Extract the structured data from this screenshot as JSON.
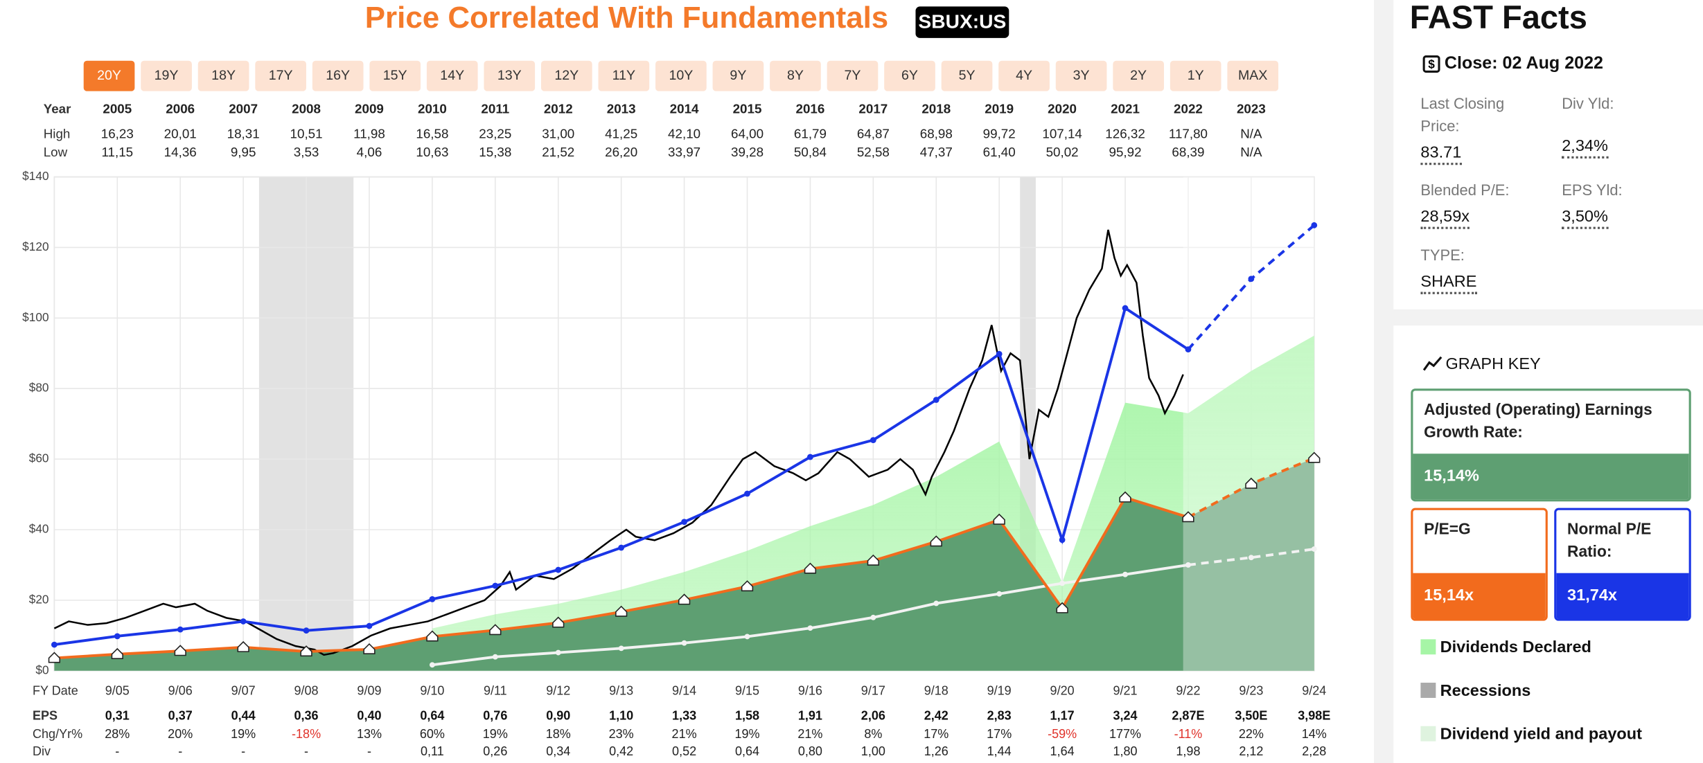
{
  "header": {
    "title": "Price Correlated With Fundamentals",
    "ticker": "SBUX:US"
  },
  "range_buttons": {
    "labels": [
      "20Y",
      "19Y",
      "18Y",
      "17Y",
      "16Y",
      "15Y",
      "14Y",
      "13Y",
      "12Y",
      "11Y",
      "10Y",
      "9Y",
      "8Y",
      "7Y",
      "6Y",
      "5Y",
      "4Y",
      "3Y",
      "2Y",
      "1Y",
      "MAX"
    ],
    "active": 0
  },
  "year_table": {
    "row_labels": [
      "Year",
      "High",
      "Low"
    ],
    "years": [
      "2005",
      "2006",
      "2007",
      "2008",
      "2009",
      "2010",
      "2011",
      "2012",
      "2013",
      "2014",
      "2015",
      "2016",
      "2017",
      "2018",
      "2019",
      "2020",
      "2021",
      "2022",
      "2023"
    ],
    "high": [
      "16,23",
      "20,01",
      "18,31",
      "10,51",
      "11,98",
      "16,58",
      "23,25",
      "31,00",
      "41,25",
      "42,10",
      "64,00",
      "61,79",
      "64,87",
      "68,98",
      "99,72",
      "107,14",
      "126,32",
      "117,80",
      "N/A"
    ],
    "low": [
      "11,15",
      "14,36",
      "9,95",
      "3,53",
      "4,06",
      "10,63",
      "15,38",
      "21,52",
      "26,20",
      "33,97",
      "39,28",
      "50,84",
      "52,58",
      "47,37",
      "61,40",
      "50,02",
      "95,92",
      "68,39",
      "N/A"
    ]
  },
  "chart_data": {
    "type": "line",
    "categories": [
      null,
      "9/05",
      "9/06",
      "9/07",
      "9/08",
      "9/09",
      "9/10",
      "9/11",
      "9/12",
      "9/13",
      "9/14",
      "9/15",
      "9/16",
      "9/17",
      "9/18",
      "9/19",
      "9/20",
      "9/21",
      "9/22",
      "9/23",
      "9/24"
    ],
    "estimate_from": 18,
    "ylim": [
      0,
      140
    ],
    "yticks": [
      {
        "value": 0,
        "label": "$0"
      },
      {
        "value": 20,
        "label": "$20"
      },
      {
        "value": 40,
        "label": "$40"
      },
      {
        "value": 60,
        "label": "$60"
      },
      {
        "value": 80,
        "label": "$80"
      },
      {
        "value": 100,
        "label": "$100"
      },
      {
        "value": 120,
        "label": "$120"
      },
      {
        "value": 140,
        "label": "$140"
      }
    ],
    "grid": true,
    "series": [
      {
        "name": "P/E=G",
        "color": "#f26b1d",
        "values": [
          3.6,
          4.69,
          5.6,
          6.66,
          5.45,
          6.06,
          9.69,
          11.5,
          13.6,
          16.7,
          20.1,
          23.9,
          28.9,
          31.2,
          36.6,
          42.8,
          17.7,
          49.1,
          43.5,
          53.0,
          60.3
        ]
      },
      {
        "name": "Normal P/E Ratio:",
        "color": "#1a35e6",
        "values": [
          7.4,
          9.8,
          11.7,
          14.0,
          11.4,
          12.7,
          20.3,
          24.1,
          28.6,
          34.9,
          42.2,
          50.2,
          60.6,
          65.4,
          76.8,
          89.8,
          37.1,
          102.8,
          91.1,
          111.1,
          126.3
        ]
      },
      {
        "name": "Dividends Declared",
        "color": "#a6f5a6",
        "values": [
          null,
          null,
          null,
          null,
          null,
          null,
          12,
          16,
          19,
          23,
          28,
          34,
          41,
          47,
          55,
          65,
          25,
          76,
          73,
          85,
          95
        ]
      },
      {
        "name": "Dividend yield and payout",
        "color": "#f2f2f2",
        "values": [
          null,
          null,
          null,
          null,
          null,
          null,
          1.67,
          3.94,
          5.15,
          6.36,
          7.87,
          9.69,
          12.1,
          15.1,
          19.1,
          21.8,
          24.8,
          27.3,
          30.0,
          32.1,
          34.5
        ]
      }
    ],
    "earnings_fill": "#5e9f72",
    "xlim": [
      2004.67,
      2024.67
    ],
    "price": {
      "color": "#000000",
      "x": [
        2004.67,
        2004.9,
        2005.2,
        2005.5,
        2005.8,
        2006.1,
        2006.4,
        2006.6,
        2006.9,
        2007.1,
        2007.4,
        2007.7,
        2007.9,
        2008.2,
        2008.5,
        2008.8,
        2008.95,
        2009.1,
        2009.4,
        2009.7,
        2010.0,
        2010.3,
        2010.6,
        2010.9,
        2011.2,
        2011.5,
        2011.75,
        2011.9,
        2012.0,
        2012.3,
        2012.6,
        2012.9,
        2013.2,
        2013.5,
        2013.75,
        2013.9,
        2014.2,
        2014.5,
        2014.8,
        2015.1,
        2015.4,
        2015.6,
        2015.8,
        2016.1,
        2016.4,
        2016.6,
        2016.8,
        2017.1,
        2017.3,
        2017.6,
        2017.9,
        2018.1,
        2018.3,
        2018.5,
        2018.6,
        2018.8,
        2018.95,
        2019.2,
        2019.4,
        2019.55,
        2019.7,
        2019.85,
        2020.0,
        2020.15,
        2020.3,
        2020.45,
        2020.6,
        2020.75,
        2020.9,
        2021.1,
        2021.3,
        2021.4,
        2021.5,
        2021.6,
        2021.7,
        2021.85,
        2021.95,
        2022.05,
        2022.2,
        2022.3,
        2022.45,
        2022.59
      ],
      "values": [
        12,
        14,
        13,
        13.5,
        15,
        17,
        19,
        18,
        19,
        17,
        15,
        14,
        12,
        9,
        7,
        6,
        4.5,
        5,
        7,
        10,
        12,
        13,
        14,
        16,
        18,
        20,
        24,
        28,
        23,
        27,
        26,
        29,
        33,
        37,
        40,
        38,
        37,
        39,
        42,
        47,
        55,
        60,
        62,
        58,
        56,
        54,
        56,
        62,
        60,
        55,
        57,
        60,
        57,
        50,
        55,
        62,
        68,
        80,
        88,
        98,
        85,
        90,
        88,
        60,
        74,
        72,
        80,
        90,
        100,
        108,
        114,
        125,
        117,
        112,
        115,
        110,
        95,
        83,
        78,
        73,
        78,
        84
      ]
    },
    "recessions": {
      "color": "#e2e2e2",
      "spans": [
        [
          2007.92,
          2009.42
        ],
        [
          2020.0,
          2020.25
        ]
      ]
    }
  },
  "fy_table": {
    "row_label": "FY Date",
    "eps_label": "EPS",
    "eps": [
      "0,31",
      "0,37",
      "0,44",
      "0,36",
      "0,40",
      "0,64",
      "0,76",
      "0,90",
      "1,10",
      "1,33",
      "1,58",
      "1,91",
      "2,06",
      "2,42",
      "2,83",
      "1,17",
      "3,24",
      "2,87E",
      "3,50E",
      "3,98E"
    ],
    "chg_label": "Chg/Yr%",
    "chg": [
      "28%",
      "20%",
      "19%",
      "-18%",
      "13%",
      "60%",
      "19%",
      "18%",
      "23%",
      "21%",
      "19%",
      "21%",
      "8%",
      "17%",
      "17%",
      "-59%",
      "177%",
      "-11%",
      "22%",
      "14%"
    ],
    "div_label": "Div",
    "div": [
      "-",
      "-",
      "-",
      "-",
      "-",
      "0,11",
      "0,26",
      "0,34",
      "0,42",
      "0,52",
      "0,64",
      "0,80",
      "1,00",
      "1,26",
      "1,44",
      "1,64",
      "1,80",
      "1,98",
      "2,12",
      "2,28"
    ]
  },
  "fast_facts": {
    "title": "FAST Facts",
    "close": "Close: 02 Aug 2022",
    "price_label": "Last Closing Price:",
    "price": "83.71",
    "div_label": "Div Yld:",
    "div": "2,34%",
    "pe_label": "Blended P/E:",
    "pe": "28,59x",
    "eps_label": "EPS Yld:",
    "eps": "3,50%",
    "type_label": "TYPE:",
    "type": "SHARE"
  },
  "graph_key": {
    "title": "GRAPH KEY",
    "growth_label": "Adjusted (Operating) Earnings Growth Rate:",
    "growth": "15,14%",
    "peg": "15,14x",
    "normal_pe": "31,74x",
    "recessions": "Recessions"
  }
}
